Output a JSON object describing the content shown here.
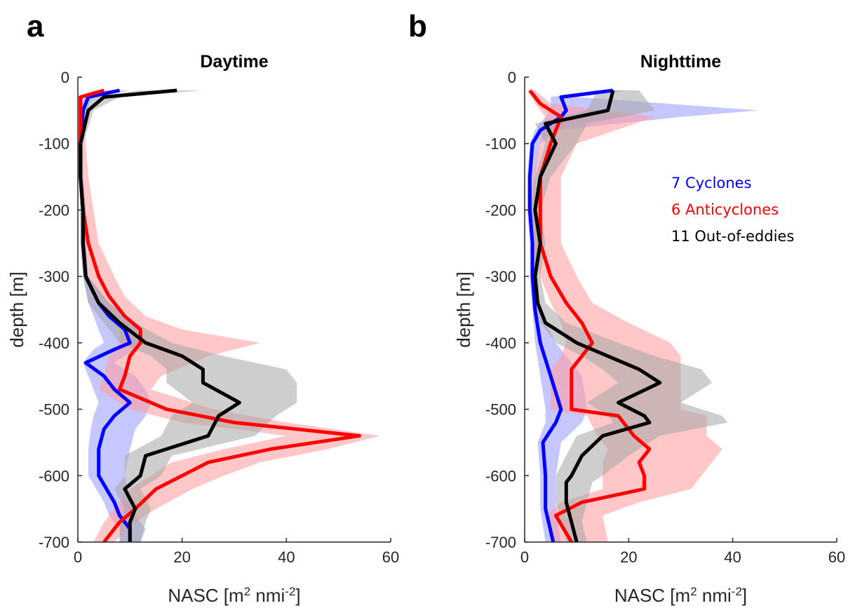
{
  "chart_data": [
    {
      "type": "line",
      "panel_label": "a",
      "title": "Daytime",
      "xlabel": "NASC [m",
      "xlabel_sup1": "2",
      "xlabel_mid": " nmi",
      "xlabel_sup2": "-2",
      "xlabel_end": "]",
      "ylabel": "depth [m]",
      "xlim": [
        0,
        60
      ],
      "ylim": [
        -700,
        0
      ],
      "xticks": [
        "0",
        "20",
        "40",
        "60"
      ],
      "yticks": [
        "0",
        "-100",
        "-200",
        "-300",
        "-400",
        "-500",
        "-600",
        "-700"
      ],
      "series": [
        {
          "color": "#0000ff",
          "band_color": "#9999ff",
          "depth": [
            -20,
            -30,
            -50,
            -100,
            -150,
            -200,
            -250,
            -300,
            -340,
            -360,
            -380,
            -400,
            -410,
            -430,
            -450,
            -470,
            -490,
            -510,
            -530,
            -560,
            -600,
            -640,
            -660,
            -680,
            -700
          ],
          "mean": [
            8,
            2,
            1,
            0.5,
            0.5,
            1,
            1,
            1.5,
            4,
            6,
            9,
            10,
            7,
            1.5,
            5,
            7,
            10,
            7,
            5,
            4,
            4,
            7,
            8,
            10,
            10
          ],
          "lower": [
            6,
            1,
            0.3,
            0.2,
            0.2,
            0.5,
            0.5,
            1,
            2,
            3,
            4,
            5,
            3,
            1,
            2,
            3,
            4,
            3,
            2.5,
            2,
            2,
            5,
            6,
            8,
            8
          ],
          "upper": [
            10,
            3,
            1.5,
            1,
            1,
            1.5,
            1.5,
            2,
            6,
            9,
            12,
            13,
            11,
            7,
            11,
            13,
            14,
            13,
            11,
            10,
            9,
            10,
            11,
            13,
            12
          ]
        },
        {
          "color": "#ff0000",
          "band_color": "#ff9999",
          "depth": [
            -20,
            -30,
            -50,
            -100,
            -150,
            -200,
            -250,
            -300,
            -330,
            -360,
            -380,
            -400,
            -420,
            -450,
            -470,
            -500,
            -520,
            -540,
            -560,
            -580,
            -600,
            -620,
            -650,
            -670,
            -700
          ],
          "mean": [
            5,
            0.5,
            0.5,
            0.5,
            0.5,
            1,
            2,
            4,
            6,
            9,
            12,
            12,
            10,
            9,
            8,
            17,
            30,
            54,
            37,
            25,
            20,
            15,
            11,
            8,
            5
          ],
          "lower": [
            3,
            0.2,
            0.2,
            0.2,
            0.2,
            0.5,
            1,
            2,
            4,
            6,
            8,
            8,
            6,
            5,
            4,
            10,
            20,
            40,
            28,
            18,
            14,
            10,
            7,
            5,
            3
          ],
          "upper": [
            7,
            1,
            1,
            1.5,
            2,
            3,
            4,
            7,
            9,
            13,
            20,
            35,
            25,
            16,
            14,
            26,
            40,
            58,
            48,
            35,
            28,
            22,
            15,
            11,
            7
          ]
        },
        {
          "color": "#000000",
          "band_color": "#a6a6a6",
          "depth": [
            -20,
            -30,
            -50,
            -100,
            -150,
            -200,
            -250,
            -300,
            -340,
            -370,
            -400,
            -420,
            -440,
            -460,
            -490,
            -510,
            -540,
            -570,
            -600,
            -620,
            -650,
            -670,
            -700
          ],
          "mean": [
            19,
            5,
            2,
            0.5,
            0.5,
            1,
            1,
            1.5,
            4,
            8,
            13,
            20,
            24,
            24,
            31,
            27,
            25,
            13,
            12,
            9,
            11,
            10,
            10
          ],
          "lower": [
            12,
            3,
            1,
            0.2,
            0.2,
            0.5,
            0.5,
            1,
            2,
            5,
            8,
            14,
            17,
            17,
            22,
            18,
            16,
            9,
            9,
            7,
            9,
            8,
            8
          ],
          "upper": [
            24,
            8,
            3,
            1,
            1,
            1.5,
            1.5,
            2,
            6,
            11,
            18,
            28,
            40,
            42,
            42,
            38,
            34,
            18,
            16,
            12,
            14,
            13,
            12
          ]
        }
      ]
    },
    {
      "type": "line",
      "panel_label": "b",
      "title": "Nighttime",
      "xlabel": "NASC [m",
      "xlabel_sup1": "2",
      "xlabel_mid": " nmi",
      "xlabel_sup2": "-2",
      "xlabel_end": "]",
      "ylabel": "depth [m]",
      "xlim": [
        0,
        60
      ],
      "ylim": [
        -700,
        0
      ],
      "xticks": [
        "0",
        "20",
        "40",
        "60"
      ],
      "yticks": [
        "0",
        "-100",
        "-200",
        "-300",
        "-400",
        "-500",
        "-600",
        "-700"
      ],
      "legend": [
        {
          "label": "7 Cyclones",
          "color": "#0000ff"
        },
        {
          "label": "6 Anticyclones",
          "color": "#ff0000"
        },
        {
          "label": "11 Out-of-eddies",
          "color": "#000000"
        }
      ],
      "series": [
        {
          "color": "#0000ff",
          "band_color": "#9999ff",
          "depth": [
            -20,
            -30,
            -50,
            -60,
            -80,
            -100,
            -150,
            -200,
            -250,
            -300,
            -350,
            -400,
            -450,
            -500,
            -520,
            -550,
            -600,
            -650,
            -700
          ],
          "mean": [
            17,
            7,
            8,
            7,
            3,
            1.5,
            1,
            1,
            1.5,
            1.5,
            2,
            3,
            5,
            7,
            6,
            3.5,
            4,
            4,
            5.5
          ],
          "lower": [
            14,
            5,
            5,
            4,
            2,
            1,
            0.5,
            0.5,
            1,
            1,
            1.5,
            2,
            3,
            4,
            4,
            2.5,
            3,
            3,
            4
          ],
          "upper": [
            20,
            10,
            45,
            30,
            6,
            3,
            2,
            2,
            2.5,
            2.5,
            3,
            6,
            11,
            12,
            11,
            7,
            6,
            6,
            7
          ]
        },
        {
          "color": "#ff0000",
          "band_color": "#ff9999",
          "depth": [
            -20,
            -40,
            -60,
            -100,
            -150,
            -200,
            -250,
            -300,
            -340,
            -370,
            -400,
            -420,
            -440,
            -470,
            -500,
            -510,
            -540,
            -560,
            -580,
            -600,
            -620,
            -640,
            -660,
            -700
          ],
          "mean": [
            1,
            3,
            7,
            5,
            3,
            3,
            3,
            5,
            8,
            11,
            13,
            11,
            9,
            9,
            9,
            18,
            21,
            24,
            22,
            23,
            23,
            11,
            6,
            9
          ],
          "lower": [
            0.5,
            2,
            4,
            3,
            1.5,
            1.5,
            1.5,
            3,
            5,
            7,
            8,
            7,
            5,
            5,
            5,
            12,
            14,
            16,
            15,
            15,
            15,
            7,
            4,
            6
          ],
          "upper": [
            2,
            5,
            25,
            10,
            7,
            7,
            7,
            10,
            13,
            20,
            28,
            30,
            30,
            30,
            30,
            35,
            35,
            38,
            36,
            34,
            32,
            22,
            15,
            16
          ]
        },
        {
          "color": "#000000",
          "band_color": "#a6a6a6",
          "depth": [
            -20,
            -50,
            -70,
            -100,
            -150,
            -200,
            -250,
            -300,
            -340,
            -370,
            -400,
            -420,
            -440,
            -460,
            -490,
            -510,
            -520,
            -540,
            -570,
            -600,
            -610,
            -640,
            -670,
            -700
          ],
          "mean": [
            17,
            16,
            4,
            6,
            3,
            2,
            3,
            2,
            2.5,
            4,
            10,
            16,
            22,
            26,
            18,
            23,
            24,
            15,
            11,
            9,
            8,
            8,
            9,
            10
          ],
          "lower": [
            14,
            12,
            2,
            4,
            2,
            1,
            2,
            1.5,
            2,
            3,
            6,
            11,
            15,
            18,
            12,
            16,
            17,
            10,
            8,
            6,
            6,
            6,
            7,
            8
          ],
          "upper": [
            22,
            25,
            12,
            10,
            5,
            3,
            4,
            3,
            4,
            8,
            18,
            25,
            34,
            36,
            30,
            38,
            39,
            26,
            20,
            15,
            13,
            12,
            11,
            12
          ]
        }
      ]
    }
  ]
}
